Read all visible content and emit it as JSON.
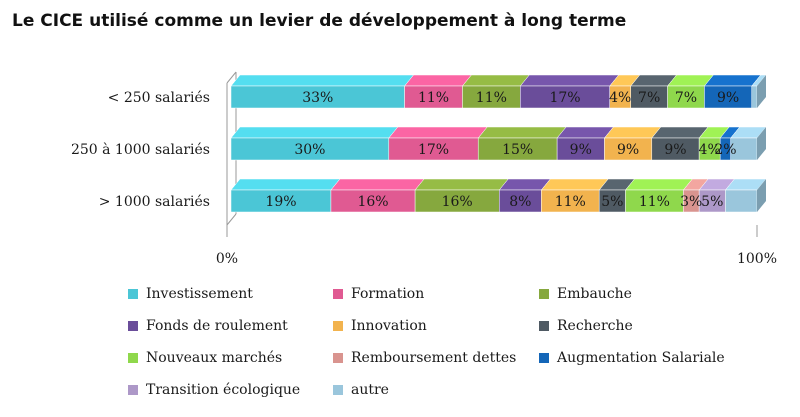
{
  "chart_data": {
    "type": "bar",
    "orientation": "horizontal",
    "stacked": "percent",
    "title": "Le CICE utilisé comme un levier de développement à long terme",
    "categories": [
      "< 250 salariés",
      "250 à 1000 salariés",
      "> 1000 salariés"
    ],
    "xticks": [
      "0%",
      "100%"
    ],
    "xlim": [
      0,
      100
    ],
    "legend_position": "bottom",
    "series": [
      {
        "name": "Investissement",
        "color": "#4bc6d6",
        "values": [
          33,
          30,
          19
        ],
        "labels": [
          "33%",
          "30%",
          "19%"
        ]
      },
      {
        "name": "Formation",
        "color": "#e05a92",
        "values": [
          11,
          17,
          16
        ],
        "labels": [
          "11%",
          "17%",
          "16%"
        ]
      },
      {
        "name": "Embauche",
        "color": "#86a83e",
        "values": [
          11,
          15,
          16
        ],
        "labels": [
          "11%",
          "15%",
          "16%"
        ]
      },
      {
        "name": "Fonds de roulement",
        "color": "#6a4d9a",
        "values": [
          17,
          9,
          8
        ],
        "labels": [
          "17%",
          "9%",
          "8%"
        ]
      },
      {
        "name": "Innovation",
        "color": "#f2b34e",
        "values": [
          4,
          9,
          11
        ],
        "labels": [
          "4%",
          "9%",
          "11%"
        ]
      },
      {
        "name": "Recherche",
        "color": "#4f5a63",
        "values": [
          7,
          9,
          5
        ],
        "labels": [
          "7%",
          "9%",
          "5%"
        ]
      },
      {
        "name": "Nouveaux marchés",
        "color": "#8fd84c",
        "values": [
          7,
          4,
          11
        ],
        "labels": [
          "7%",
          "4%",
          "11%"
        ]
      },
      {
        "name": "Remboursement dettes",
        "color": "#d9948f",
        "values": [
          0,
          0,
          3
        ],
        "labels": [
          "",
          "",
          "3%"
        ]
      },
      {
        "name": "Augmentation Salariale",
        "color": "#1466b8",
        "values": [
          9,
          2,
          0
        ],
        "labels": [
          "9%",
          "2%",
          ""
        ]
      },
      {
        "name": "Transition écologique",
        "color": "#ad98c8",
        "values": [
          0,
          0,
          5
        ],
        "labels": [
          "",
          "",
          "5%"
        ]
      },
      {
        "name": "autre",
        "color": "#9ac6dc",
        "values": [
          1,
          5,
          6
        ],
        "labels": [
          "",
          "",
          ""
        ]
      }
    ]
  }
}
